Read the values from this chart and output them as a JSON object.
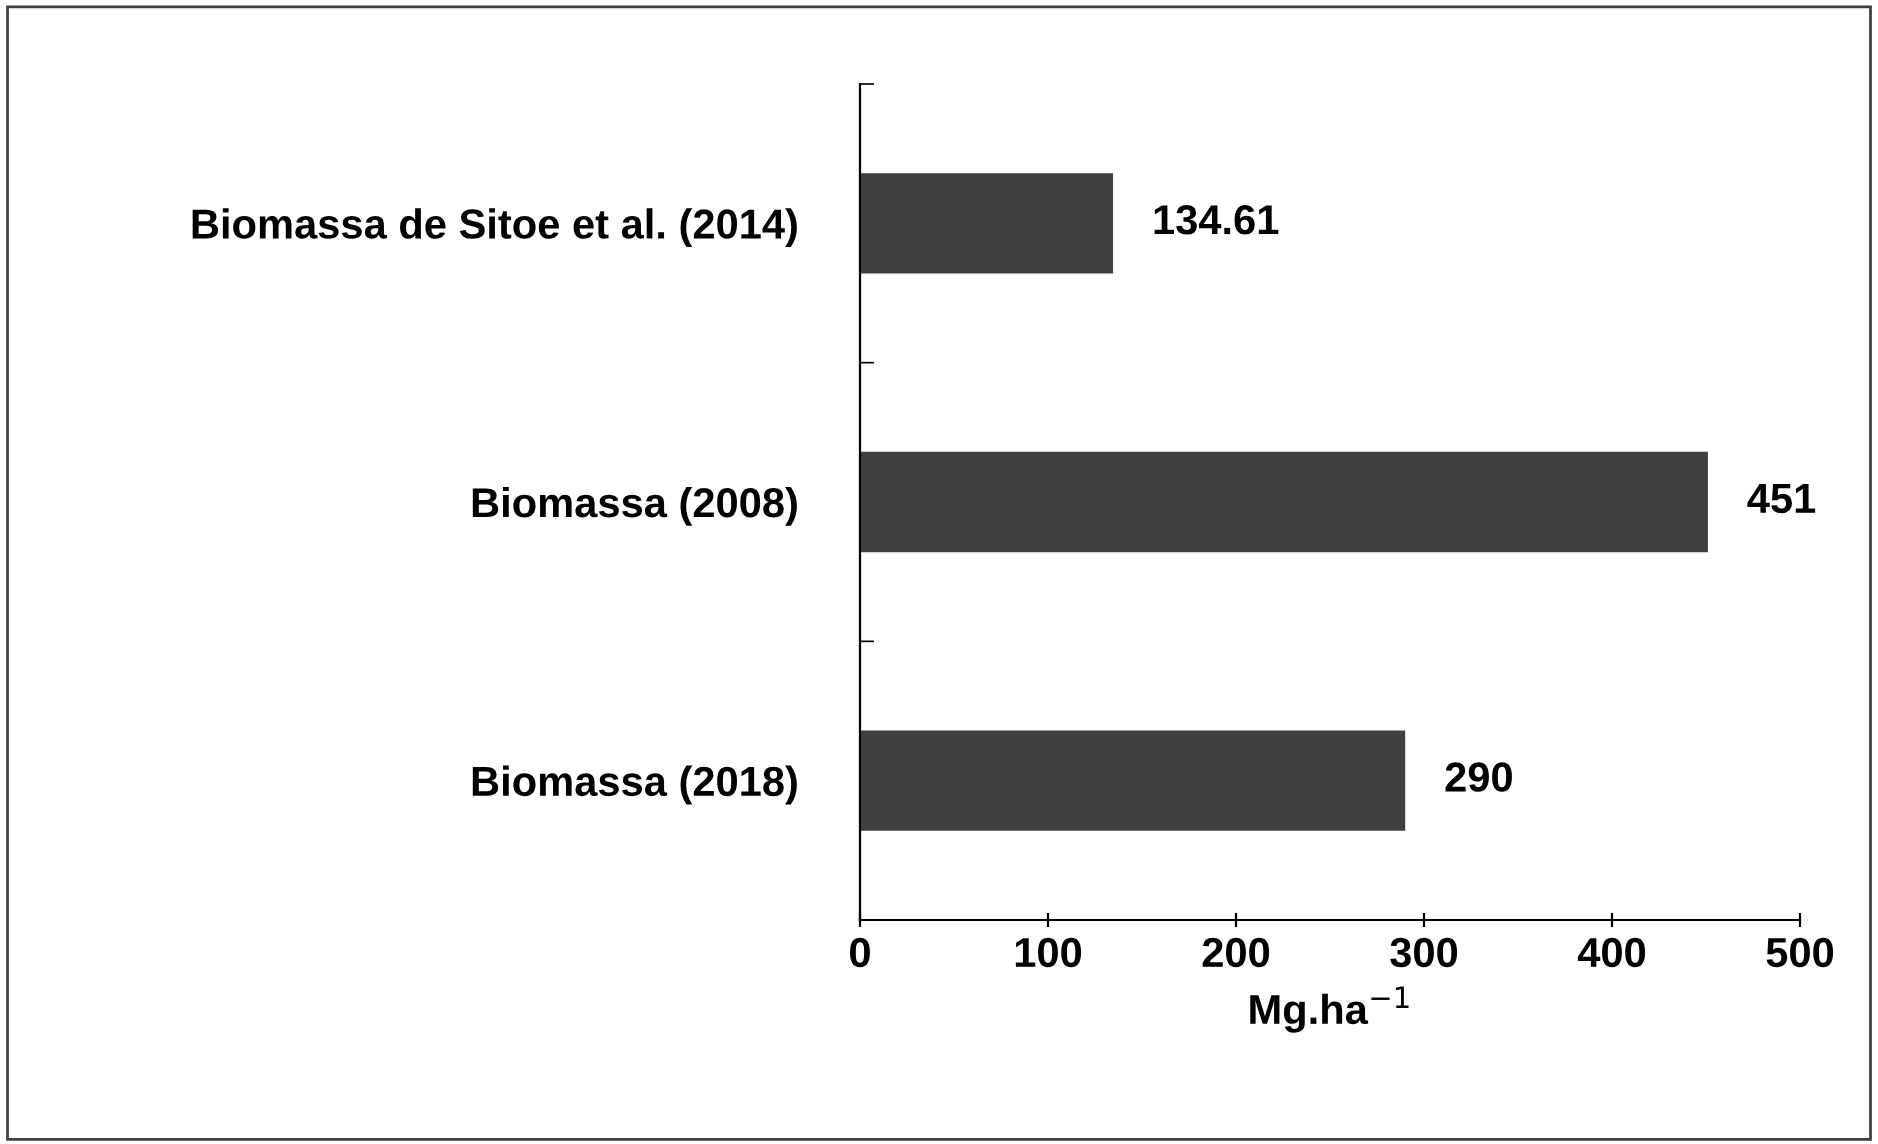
{
  "chart_data": {
    "type": "bar",
    "orientation": "horizontal",
    "xlabel": "Mg.ha$^{−1}$",
    "categories": [
      "Biomassa de Sitoe et al. (2014)",
      "Biomassa (2008)",
      "Biomassa (2018)"
    ],
    "values": [
      134.61,
      451,
      290
    ],
    "color": "#404040",
    "xlim": [
      0,
      500
    ],
    "xticks": [
      0,
      100,
      200,
      300,
      400,
      500
    ],
    "data_labels": true,
    "grid": false,
    "legend": false
  }
}
